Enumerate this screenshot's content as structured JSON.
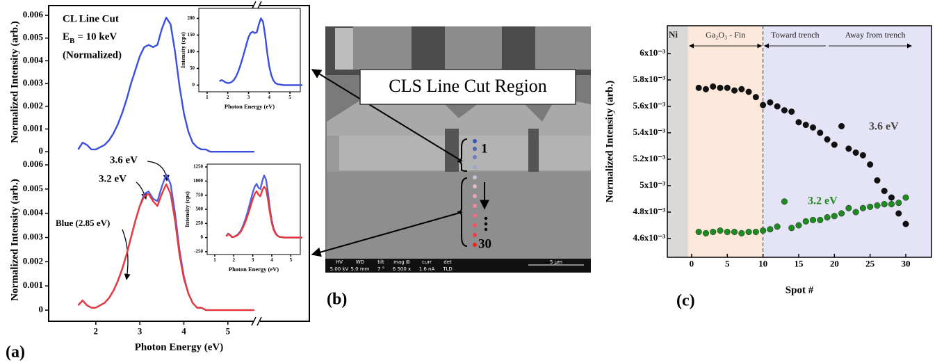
{
  "chart_data": [
    {
      "type": "line",
      "annotations": [
        "CL Line Cut",
        "(Normalized)"
      ],
      "beam_energy": {
        "symbol": "E",
        "subscript": "B",
        "text": "= 10 keV"
      },
      "ylabel": "Normalized Intensity (arb.)",
      "x": [
        1.6,
        1.7,
        1.8,
        1.9,
        2,
        2.1,
        2.2,
        2.3,
        2.4,
        2.5,
        2.6,
        2.7,
        2.8,
        2.9,
        3,
        3.1,
        3.2,
        3.3,
        3.4,
        3.5,
        3.6,
        3.7,
        3.8,
        3.9,
        4,
        4.1,
        4.2,
        4.3,
        4.4,
        4.5,
        4.6,
        4.7,
        4.8,
        4.9,
        5,
        5.1,
        5.2,
        5.3,
        5.4,
        5.5,
        5.6
      ],
      "xlim": [
        0.93,
        6.85
      ],
      "ylim": [
        -0.0003,
        0.00643
      ],
      "yticks": [
        0,
        0.001,
        0.002,
        0.003,
        0.004,
        0.005,
        0.006
      ],
      "series": [
        {
          "color": "#3a4de0",
          "values": [
            0.0001,
            0.0004,
            0.0003,
            0.0001,
            0.0001,
            0.0002,
            0.0003,
            0.0005,
            0.0008,
            0.0012,
            0.0017,
            0.0023,
            0.003,
            0.0036,
            0.0042,
            0.0046,
            0.0047,
            0.0046,
            0.0047,
            0.0054,
            0.0059,
            0.0056,
            0.0044,
            0.0029,
            0.0017,
            0.0009,
            0.0004,
            0.0002,
            0.0001,
            0.0001,
            0,
            0,
            0,
            0,
            0,
            0,
            0,
            0,
            0,
            0,
            0
          ]
        }
      ],
      "inset": {
        "type": "line",
        "xlabel": "Photon Energy (eV)",
        "ylabel": "Intensity (cps)",
        "xlim": [
          0.6,
          5.5
        ],
        "ylim": [
          -20,
          230
        ],
        "xticks": [
          1,
          2,
          3,
          4,
          5
        ],
        "yticks": [
          0,
          50,
          100,
          150,
          200
        ],
        "series": [
          {
            "color": "#3a4de0",
            "values": [
              12,
              15,
              12,
              8,
              6,
              7,
              10,
              16,
              26,
              40,
              58,
              78,
              100,
              122,
              144,
              156,
              160,
              156,
              158,
              182,
              200,
              190,
              150,
              98,
              56,
              30,
              14,
              6,
              3,
              2,
              1,
              0,
              0,
              0,
              0,
              0,
              0,
              0,
              0,
              0,
              0
            ]
          }
        ]
      }
    },
    {
      "type": "line",
      "panel_label": "(a)",
      "annotations": [
        "3.6 eV",
        "3.2 eV",
        "Blue (2.85 eV)"
      ],
      "xlabel": "Photon Energy (eV)",
      "ylabel": "Normalized Intensity (arb.)",
      "x": [
        1.6,
        1.7,
        1.8,
        1.9,
        2,
        2.1,
        2.2,
        2.3,
        2.4,
        2.5,
        2.6,
        2.7,
        2.8,
        2.9,
        3,
        3.1,
        3.2,
        3.3,
        3.4,
        3.5,
        3.6,
        3.7,
        3.8,
        3.9,
        4,
        4.1,
        4.2,
        4.3,
        4.4,
        4.5,
        4.6,
        4.7,
        4.8,
        4.9,
        5,
        5.1,
        5.2,
        5.3,
        5.4,
        5.5,
        5.6
      ],
      "xlim": [
        0.93,
        6.85
      ],
      "ylim": [
        -0.00046,
        0.00626
      ],
      "xticks": [
        2,
        3,
        4,
        5
      ],
      "yticks": [
        0,
        0.001,
        0.002,
        0.003,
        0.004,
        0.005,
        0.006
      ],
      "series": [
        {
          "color": "#5060e0",
          "values": [
            0.0002,
            0.0004,
            0.0002,
            0.0001,
            0.0001,
            0.0002,
            0.0003,
            0.0005,
            0.0008,
            0.0012,
            0.0017,
            0.0023,
            0.003,
            0.0037,
            0.0043,
            0.0048,
            0.0049,
            0.0046,
            0.0045,
            0.0051,
            0.0056,
            0.0052,
            0.004,
            0.0025,
            0.0014,
            0.0007,
            0.0003,
            0.0001,
            0.0001,
            0,
            0,
            0,
            0,
            0,
            0,
            0,
            0,
            0,
            0,
            0,
            0
          ]
        },
        {
          "color": "#e83a3a",
          "values": [
            0.0002,
            0.0004,
            0.0002,
            0.0001,
            0.0001,
            0.0002,
            0.0003,
            0.0005,
            0.0008,
            0.0012,
            0.0017,
            0.0023,
            0.003,
            0.0037,
            0.0043,
            0.0047,
            0.0048,
            0.0045,
            0.0043,
            0.0048,
            0.0052,
            0.0048,
            0.0037,
            0.0023,
            0.0013,
            0.0007,
            0.0003,
            0.0001,
            0.0001,
            0,
            0,
            0,
            0,
            0,
            0,
            0,
            0,
            0,
            0,
            0,
            0
          ]
        }
      ],
      "inset": {
        "type": "line",
        "xlabel": "Photon Energy (eV)",
        "ylabel": "Intensity (cps)",
        "xlim": [
          0.6,
          5.5
        ],
        "ylim": [
          -300,
          1300
        ],
        "xticks": [
          1,
          2,
          3,
          4,
          5
        ],
        "yticks": [
          -250,
          0,
          250,
          500,
          750,
          1000,
          1250
        ],
        "series": [
          {
            "color": "#5060e0",
            "values": [
              25,
              70,
              50,
              10,
              15,
              30,
              50,
              90,
              140,
              220,
              310,
              420,
              540,
              670,
              800,
              900,
              950,
              880,
              860,
              1000,
              1100,
              1020,
              800,
              520,
              300,
              160,
              80,
              35,
              15,
              8,
              4,
              0,
              0,
              0,
              0,
              0,
              0,
              0,
              0,
              0,
              0
            ]
          },
          {
            "color": "#e83a3a",
            "values": [
              20,
              60,
              45,
              8,
              12,
              25,
              42,
              75,
              120,
              190,
              265,
              360,
              460,
              570,
              680,
              770,
              820,
              760,
              730,
              840,
              900,
              850,
              670,
              440,
              255,
              135,
              68,
              30,
              13,
              7,
              3,
              0,
              0,
              0,
              0,
              0,
              0,
              0,
              0,
              0,
              0
            ]
          }
        ]
      }
    },
    {
      "type": "scatter",
      "panel_label": "(c)",
      "xlabel": "Spot #",
      "ylabel": "Normalized Intensity (arb.)",
      "x": [
        1,
        2,
        3,
        4,
        5,
        6,
        7,
        8,
        9,
        10,
        11,
        12,
        13,
        14,
        15,
        16,
        17,
        18,
        19,
        20,
        21,
        22,
        23,
        24,
        25,
        26,
        27,
        28,
        29,
        30
      ],
      "xlim": [
        -3.4,
        33.6
      ],
      "ylim": [
        0.004458,
        0.00621
      ],
      "xticks": [
        0,
        5,
        10,
        15,
        20,
        25,
        30
      ],
      "yticks": [
        {
          "value": 0.0046,
          "label": "4.6x10⁻³"
        },
        {
          "value": 0.0048,
          "label": "4.8x10⁻³"
        },
        {
          "value": 0.005,
          "label": "5x10⁻³"
        },
        {
          "value": 0.0052,
          "label": "5.2x10⁻³"
        },
        {
          "value": 0.0054,
          "label": "5.4x10⁻³"
        },
        {
          "value": 0.0056,
          "label": "5.6x10⁻³"
        },
        {
          "value": 0.0058,
          "label": "5.8x10⁻³"
        },
        {
          "value": 0.006,
          "label": "6x10⁻³"
        }
      ],
      "regions": [
        {
          "label": "Ni",
          "from": -3.4,
          "to": -0.5,
          "color": "#d9d9d9"
        },
        {
          "label": "Ga₂O₃ - Fin",
          "from": -0.5,
          "to": 10,
          "color": "#fbe8da"
        },
        {
          "label": "Toward trench",
          "from": 10,
          "to": 19,
          "color": "#e4e4f6"
        },
        {
          "label": "Away from trench",
          "from": 19,
          "to": 33.6,
          "color": "#e4e4f6"
        }
      ],
      "series": [
        {
          "name": "3.6 eV",
          "color": "#111111",
          "values": [
            0.00574,
            0.00573,
            0.00575,
            0.00574,
            0.00574,
            0.00572,
            0.00573,
            0.00571,
            0.00567,
            0.00561,
            0.00563,
            0.0056,
            0.00557,
            0.00556,
            0.00548,
            0.00546,
            0.00544,
            0.0054,
            0.00535,
            0.00531,
            0.00545,
            0.00528,
            0.00525,
            0.00523,
            0.00516,
            0.00504,
            0.00496,
            0.00491,
            0.00479,
            0.00471
          ]
        },
        {
          "name": "3.2 eV",
          "color": "#1f8a1f",
          "values": [
            0.00465,
            0.00464,
            0.00465,
            0.00466,
            0.00465,
            0.00465,
            0.00464,
            0.00465,
            0.00465,
            0.00466,
            0.00467,
            0.00469,
            0.00488,
            0.00468,
            0.0047,
            0.00473,
            0.00474,
            0.00474,
            0.00476,
            0.00477,
            0.00479,
            0.00483,
            0.0048,
            0.00483,
            0.00484,
            0.00485,
            0.00486,
            0.00486,
            0.00487,
            0.00491
          ]
        }
      ]
    }
  ],
  "sem_image": {
    "panel_label": "(b)",
    "callout": "CLS Line Cut Region",
    "spot_labels": [
      "1",
      "30"
    ],
    "info_bar": [
      {
        "label": "HV",
        "value": "5.00 kV"
      },
      {
        "label": "WD",
        "value": "5.0 mm"
      },
      {
        "label": "tilt",
        "value": "7 °"
      },
      {
        "label": "mag ⊞",
        "value": "6 500 x"
      },
      {
        "label": "curr",
        "value": "1.6 nA"
      },
      {
        "label": "det",
        "value": "TLD"
      }
    ],
    "scale_bar": "5 μm"
  }
}
